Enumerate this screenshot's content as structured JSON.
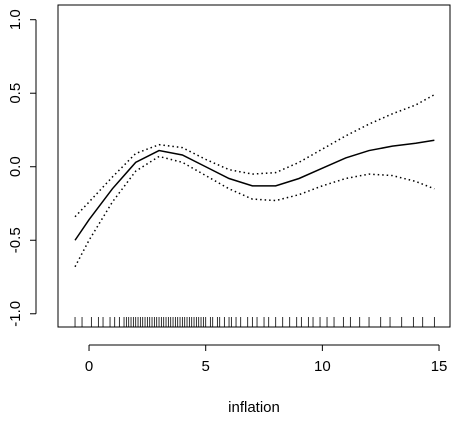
{
  "chart_data": {
    "type": "line",
    "xlabel": "inflation",
    "x": [
      -0.6,
      0,
      1,
      2,
      3,
      4,
      5,
      6,
      7,
      8,
      9,
      10,
      11,
      12,
      13,
      14,
      14.8
    ],
    "series": [
      {
        "color": "#000000",
        "style": "solid",
        "values": [
          -0.5,
          -0.36,
          -0.15,
          0.03,
          0.11,
          0.08,
          0.0,
          -0.08,
          -0.13,
          -0.13,
          -0.08,
          -0.01,
          0.06,
          0.11,
          0.14,
          0.16,
          0.18
        ]
      },
      {
        "color": "#000000",
        "style": "dotted",
        "values": [
          -0.34,
          -0.24,
          -0.07,
          0.09,
          0.15,
          0.13,
          0.05,
          -0.02,
          -0.05,
          -0.04,
          0.03,
          0.12,
          0.21,
          0.29,
          0.36,
          0.42,
          0.49
        ]
      },
      {
        "color": "#000000",
        "style": "dotted",
        "values": [
          -0.68,
          -0.5,
          -0.24,
          -0.03,
          0.07,
          0.03,
          -0.06,
          -0.15,
          -0.22,
          -0.23,
          -0.19,
          -0.13,
          -0.08,
          -0.05,
          -0.06,
          -0.1,
          -0.15
        ]
      }
    ],
    "rug": [
      -0.6,
      -0.3,
      0.1,
      0.4,
      0.6,
      0.9,
      1.1,
      1.3,
      1.5,
      1.6,
      1.7,
      1.8,
      1.9,
      2.0,
      2.1,
      2.2,
      2.3,
      2.4,
      2.5,
      2.6,
      2.7,
      2.8,
      2.9,
      3.0,
      3.1,
      3.2,
      3.3,
      3.4,
      3.5,
      3.6,
      3.7,
      3.8,
      3.9,
      4.0,
      4.1,
      4.2,
      4.3,
      4.4,
      4.5,
      4.6,
      4.7,
      4.8,
      4.9,
      5.0,
      5.2,
      5.3,
      5.5,
      5.6,
      5.8,
      6.0,
      6.1,
      6.3,
      6.5,
      6.8,
      7.0,
      7.2,
      7.5,
      7.7,
      8.0,
      8.3,
      8.6,
      8.9,
      9.1,
      9.4,
      9.6,
      9.9,
      10.2,
      10.5,
      10.9,
      11.2,
      11.6,
      12.0,
      12.5,
      12.9,
      13.4,
      13.9,
      14.3,
      14.8
    ],
    "xlim": [
      -1.33,
      15.47
    ],
    "xticks": [
      0,
      5,
      10,
      15
    ],
    "ylim": [
      -1.09,
      1.1
    ],
    "yticks": [
      {
        "value": -1,
        "label": "-1.0"
      },
      {
        "value": -0.5,
        "label": "-0.5"
      },
      {
        "value": 0,
        "label": "0.0"
      },
      {
        "value": 0.5,
        "label": "0.5"
      },
      {
        "value": 1,
        "label": "1.0"
      }
    ]
  }
}
